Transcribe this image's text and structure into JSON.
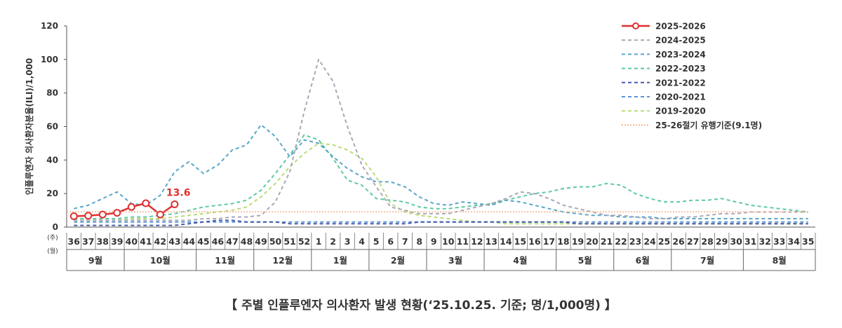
{
  "chart_data": {
    "type": "line",
    "ylabel": "인플루엔자 의사환자분율(ILI)/1,000",
    "ylim": [
      0,
      120
    ],
    "yticks": [
      "0",
      "20",
      "40",
      "60",
      "80",
      "100",
      "120"
    ],
    "grid": false,
    "legend_position": "top-right",
    "week_row_label": "(주)",
    "month_row_label": "(월)",
    "weeks": [
      "36",
      "37",
      "38",
      "39",
      "40",
      "41",
      "42",
      "43",
      "44",
      "45",
      "46",
      "47",
      "48",
      "49",
      "50",
      "51",
      "52",
      "1",
      "2",
      "3",
      "4",
      "5",
      "6",
      "7",
      "8",
      "9",
      "10",
      "11",
      "12",
      "13",
      "14",
      "15",
      "16",
      "17",
      "18",
      "19",
      "20",
      "21",
      "22",
      "23",
      "24",
      "25",
      "26",
      "27",
      "28",
      "29",
      "30",
      "31",
      "32",
      "33",
      "34",
      "35"
    ],
    "months": [
      {
        "label": "9월",
        "weeks": 4
      },
      {
        "label": "10월",
        "weeks": 5
      },
      {
        "label": "11월",
        "weeks": 4
      },
      {
        "label": "12월",
        "weeks": 4
      },
      {
        "label": "1월",
        "weeks": 4
      },
      {
        "label": "2월",
        "weeks": 4
      },
      {
        "label": "3월",
        "weeks": 4
      },
      {
        "label": "4월",
        "weeks": 5
      },
      {
        "label": "5월",
        "weeks": 4
      },
      {
        "label": "6월",
        "weeks": 4
      },
      {
        "label": "7월",
        "weeks": 5
      },
      {
        "label": "8월",
        "weeks": 5
      }
    ],
    "annotation": "13.6",
    "series": [
      {
        "name": "2019-2020",
        "color": "#b8dc78",
        "dash": "5,4",
        "values": [
          4,
          4,
          4,
          4,
          5,
          5,
          5,
          6,
          7,
          8,
          9,
          10,
          12,
          18,
          26,
          36,
          44,
          50,
          49,
          46,
          41,
          30,
          14,
          9,
          7,
          6,
          5,
          4,
          3,
          3,
          2,
          2,
          2,
          2,
          2,
          2,
          2,
          2,
          2,
          2,
          2,
          2,
          2,
          2,
          2,
          2,
          2,
          2,
          2,
          2,
          2,
          2
        ]
      },
      {
        "name": "2020-2021",
        "color": "#5b95d6",
        "dash": "5,4",
        "values": [
          3,
          3,
          3,
          3,
          3,
          3,
          3,
          3,
          3,
          3,
          3,
          3,
          3,
          3,
          3,
          3,
          3,
          3,
          3,
          3,
          3,
          3,
          3,
          3,
          3,
          3,
          3,
          3,
          3,
          3,
          3,
          3,
          3,
          3,
          3,
          3,
          3,
          3,
          3,
          3,
          3,
          3,
          3,
          3,
          3,
          3,
          3,
          3,
          3,
          3,
          3,
          3
        ]
      },
      {
        "name": "2021-2022",
        "color": "#4a5aa8",
        "dash": "5,4",
        "values": [
          1,
          1,
          1,
          1,
          1,
          1,
          1,
          1,
          2,
          3,
          4,
          4,
          3,
          3,
          3,
          2,
          2,
          2,
          2,
          2,
          2,
          2,
          2,
          2,
          3,
          3,
          3,
          3,
          3,
          3,
          3,
          3,
          3,
          3,
          3,
          2,
          2,
          2,
          2,
          2,
          2,
          2,
          2,
          2,
          2,
          2,
          2,
          2,
          2,
          2,
          2,
          2
        ]
      },
      {
        "name": "2022-2023",
        "color": "#5ec9a3",
        "dash": "5,4",
        "values": [
          5,
          5,
          5,
          5,
          6,
          6,
          7,
          8,
          10,
          12,
          13,
          14,
          16,
          22,
          32,
          43,
          55,
          52,
          41,
          28,
          25,
          17,
          16,
          15,
          12,
          11,
          11,
          12,
          13,
          14,
          16,
          18,
          20,
          21,
          23,
          24,
          24,
          26,
          25,
          20,
          17,
          15,
          15,
          16,
          16,
          17,
          15,
          13,
          12,
          11,
          10,
          9
        ]
      },
      {
        "name": "2023-2024",
        "color": "#5aa6c9",
        "dash": "5,4",
        "values": [
          11,
          13,
          17,
          21,
          14,
          13,
          19,
          33,
          39,
          32,
          37,
          46,
          49,
          61,
          54,
          42,
          52,
          50,
          42,
          35,
          30,
          27,
          27,
          24,
          18,
          14,
          13,
          15,
          14,
          13,
          16,
          15,
          13,
          11,
          9,
          8,
          7,
          7,
          6,
          6,
          6,
          5,
          5,
          5,
          5,
          5,
          5,
          5,
          5,
          5,
          5,
          5
        ]
      },
      {
        "name": "2024-2025",
        "color": "#a8a8b8",
        "dash": "5,4",
        "values": [
          4,
          4,
          4,
          4,
          4,
          4,
          4,
          4,
          4,
          5,
          5,
          6,
          6,
          7,
          15,
          33,
          69,
          100,
          87,
          60,
          37,
          24,
          12,
          10,
          8,
          8,
          8,
          10,
          12,
          14,
          17,
          21,
          20,
          17,
          13,
          11,
          9,
          7,
          7,
          6,
          5,
          5,
          6,
          6,
          7,
          8,
          8,
          9,
          9,
          9,
          9,
          9
        ]
      },
      {
        "name": "2025-2026",
        "color": "#e03030",
        "dash": "",
        "values": [
          6.5,
          6.8,
          7.5,
          8.5,
          12,
          14.2,
          7.5,
          13.6
        ]
      },
      {
        "name": "25-26절기 유행기준(9.1명)",
        "color": "#f2b48c",
        "dash": "2,2",
        "threshold": 9.1
      }
    ]
  },
  "caption": "【 주별 인플루엔자 의사환자 발생 현황(‘25.10.25. 기준; 명/1,000명) 】"
}
